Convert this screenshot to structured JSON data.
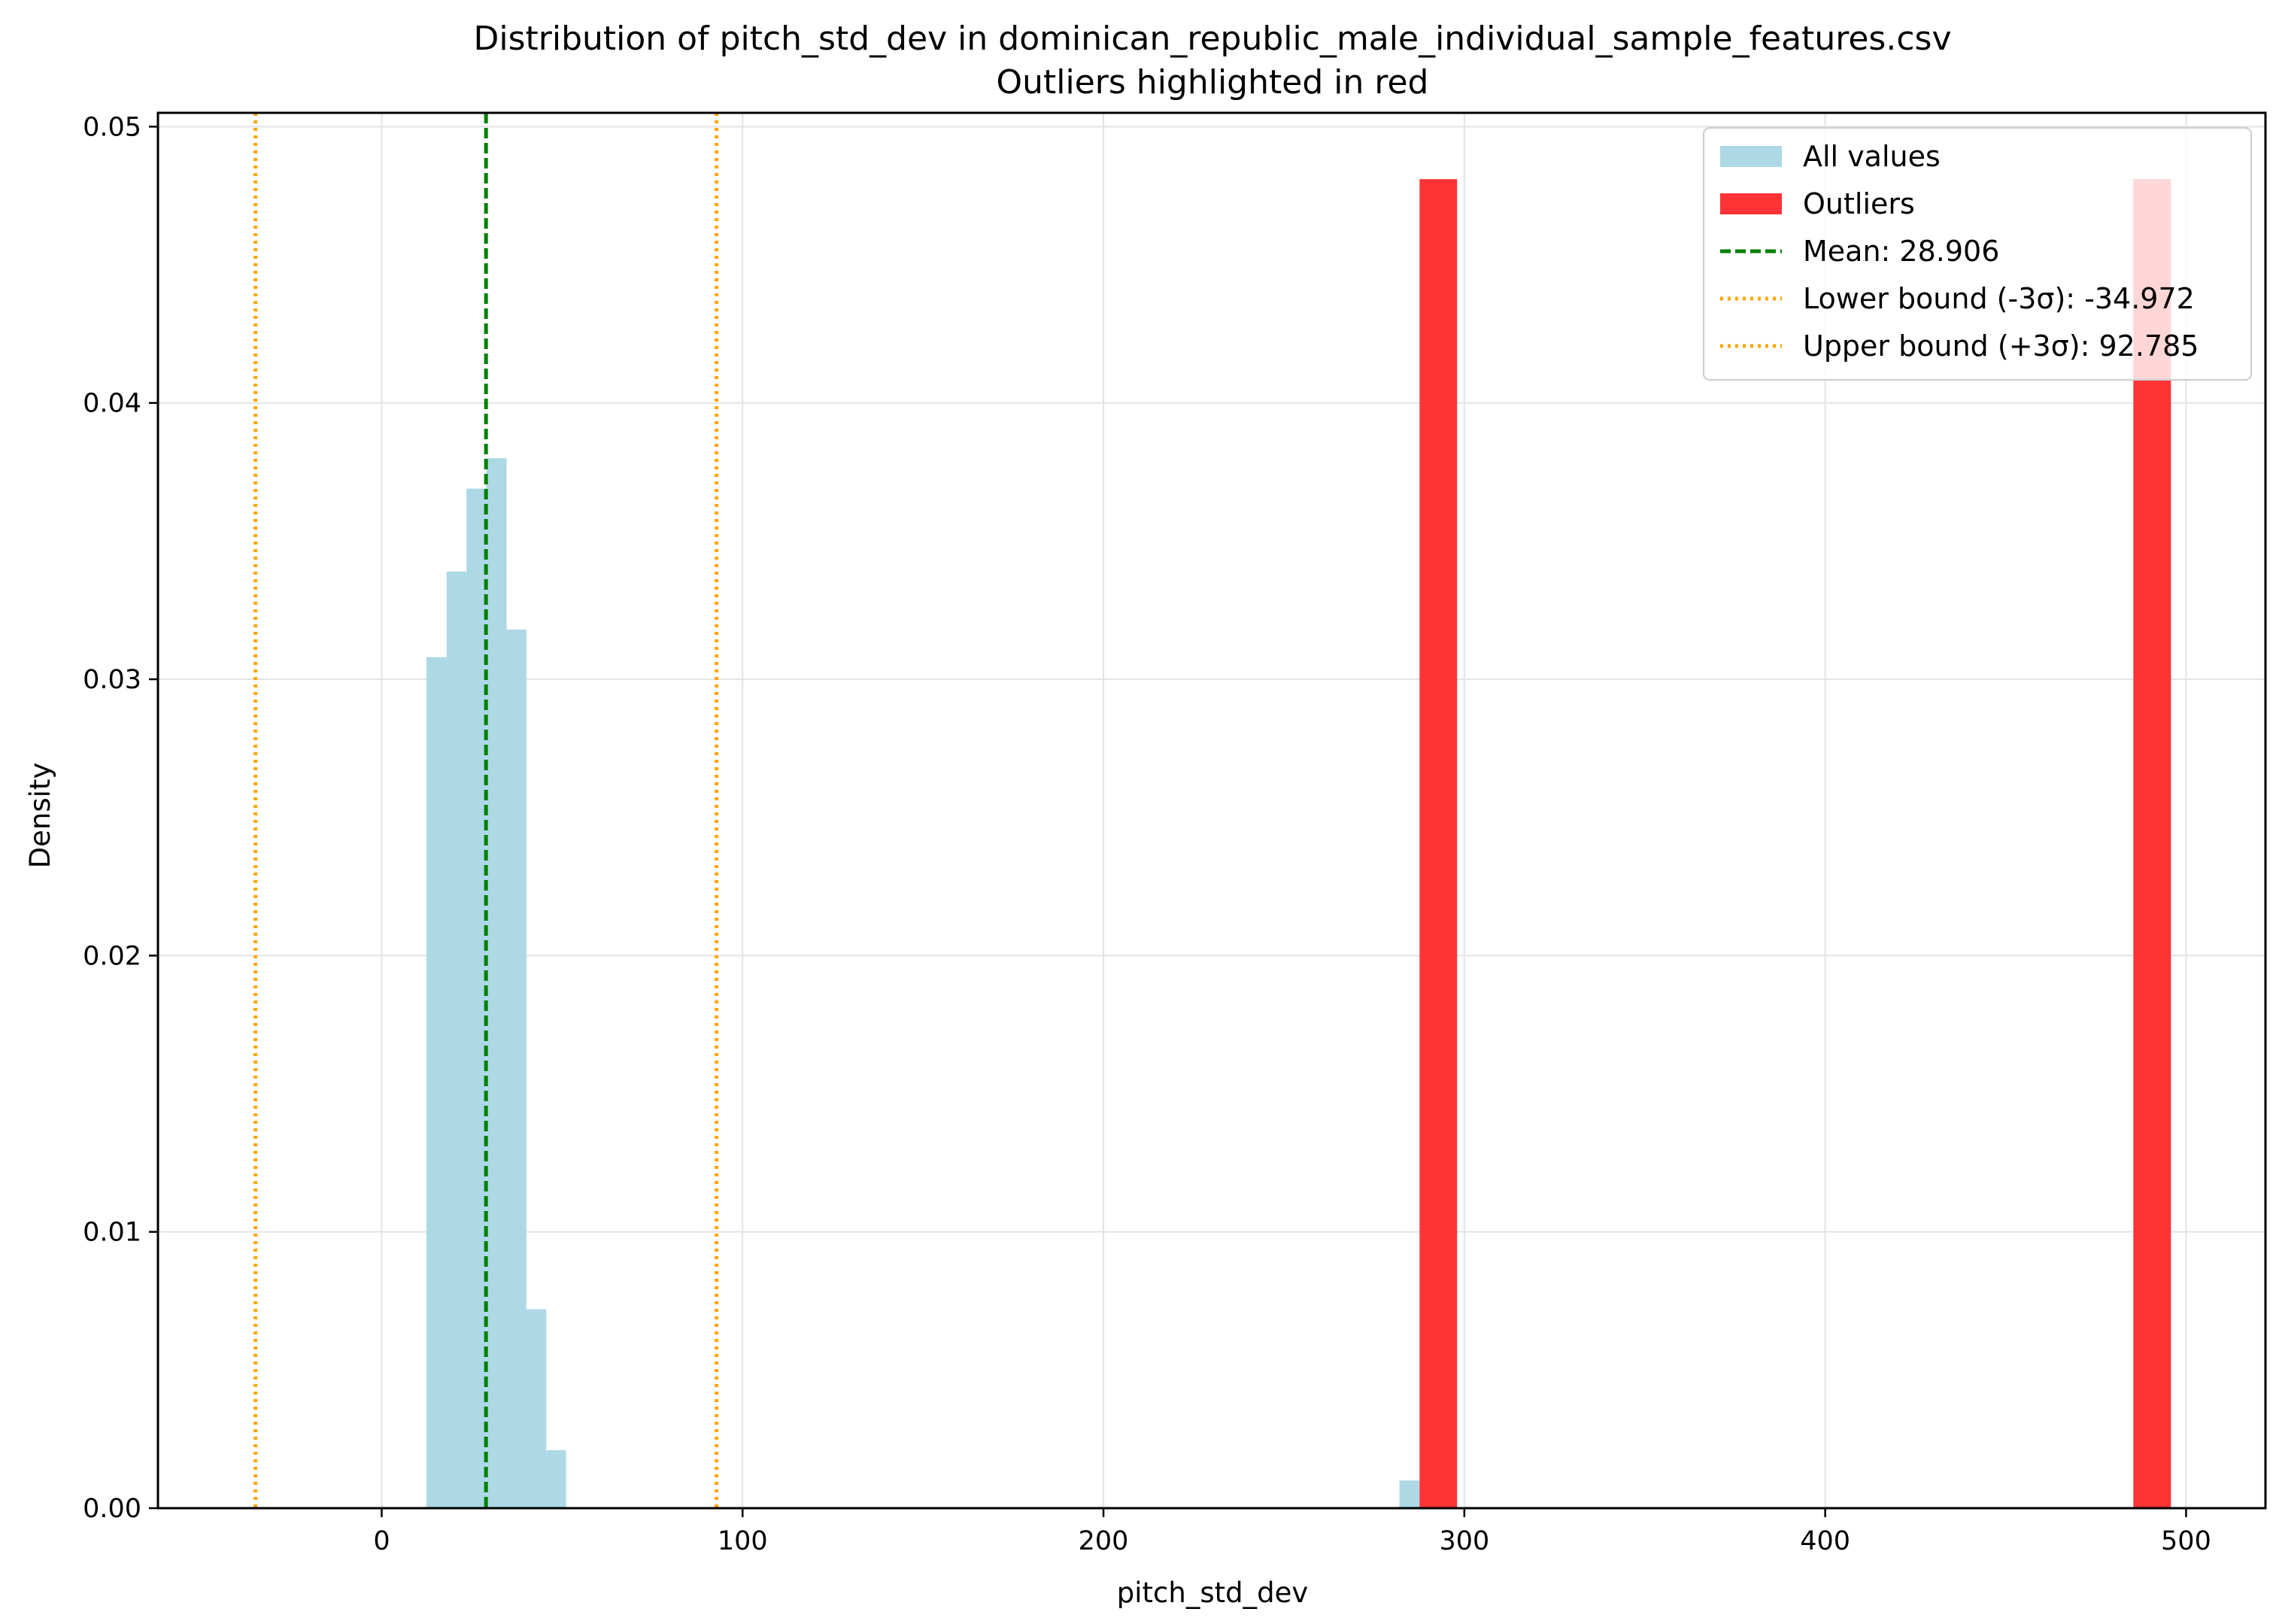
{
  "chart_data": {
    "type": "bar",
    "title": "Distribution of pitch_std_dev in dominican_republic_male_individual_sample_features.csv",
    "subtitle": "Outliers highlighted in red",
    "xlabel": "pitch_std_dev",
    "ylabel": "Density",
    "xlim": [
      -62,
      522
    ],
    "ylim": [
      0,
      0.0505
    ],
    "x_ticks": [
      0,
      100,
      200,
      300,
      400,
      500
    ],
    "y_ticks": [
      0.0,
      0.01,
      0.02,
      0.03,
      0.04,
      0.05
    ],
    "x_tick_labels": [
      "0",
      "100",
      "200",
      "300",
      "400",
      "500"
    ],
    "y_tick_labels": [
      "0.00",
      "0.01",
      "0.02",
      "0.03",
      "0.04",
      "0.05"
    ],
    "grid": true,
    "legend_position": "top-right",
    "series": [
      {
        "name": "All values",
        "color": "#add8e6",
        "bins": [
          {
            "x0": 12.4,
            "x1": 18.0,
            "density": 0.0308
          },
          {
            "x0": 18.0,
            "x1": 23.5,
            "density": 0.0339
          },
          {
            "x0": 23.5,
            "x1": 29.0,
            "density": 0.0369
          },
          {
            "x0": 29.0,
            "x1": 34.6,
            "density": 0.038
          },
          {
            "x0": 34.6,
            "x1": 40.1,
            "density": 0.0318
          },
          {
            "x0": 40.1,
            "x1": 45.6,
            "density": 0.0072
          },
          {
            "x0": 45.6,
            "x1": 51.1,
            "density": 0.0021
          },
          {
            "x0": 282.0,
            "x1": 287.6,
            "density": 0.001
          },
          {
            "x0": 485.4,
            "x1": 495.8,
            "density": 0.0481
          }
        ]
      },
      {
        "name": "Outliers",
        "color": "#ff3336",
        "bins": [
          {
            "x0": 287.6,
            "x1": 298.0,
            "density": 0.0481
          },
          {
            "x0": 485.4,
            "x1": 495.8,
            "density": 0.0481
          }
        ]
      }
    ],
    "reference_lines": [
      {
        "name": "Mean: 28.906",
        "x": 28.906,
        "color": "#008000",
        "style": "dashed"
      },
      {
        "name": "Lower bound (-3σ): -34.972",
        "x": -34.972,
        "color": "#ffa500",
        "style": "dotted"
      },
      {
        "name": "Upper bound (+3σ): 92.785",
        "x": 92.785,
        "color": "#ffa500",
        "style": "dotted"
      }
    ]
  }
}
